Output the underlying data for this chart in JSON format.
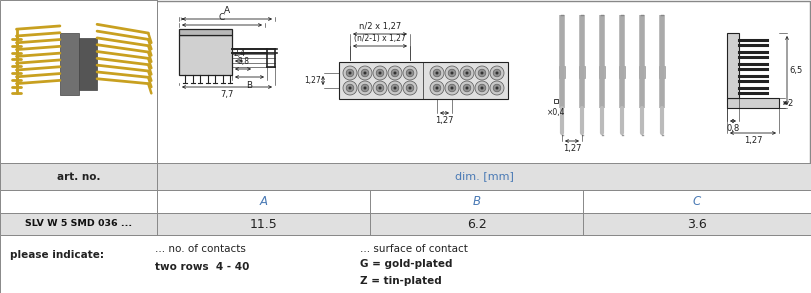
{
  "bg_color": "#ffffff",
  "grid_color": "#999999",
  "dim_color": "#222222",
  "lc": "#222222",
  "gold_color": "#c8a020",
  "gray_light": "#cccccc",
  "gray_mid": "#aaaaaa",
  "gray_dark": "#888888",
  "table_gray": "#e0e0e0",
  "table_white": "#ffffff",
  "blue_dim": "#4a7ab5",
  "art_no_label": "art. no.",
  "dim_label": "dim. [mm]",
  "col_A": "A",
  "col_B": "B",
  "col_C": "C",
  "part_number": "SLV W 5 SMD 036 ...",
  "val_A": "11.5",
  "val_B": "6.2",
  "val_C": "3.6",
  "please_indicate": "please indicate:",
  "contacts_label": "... no. of contacts",
  "rows_label": "two rows  4 - 40",
  "surface_label": "... surface of contact",
  "gold_label": "G = gold-plated",
  "zinc_label": "Z = tin-plated"
}
